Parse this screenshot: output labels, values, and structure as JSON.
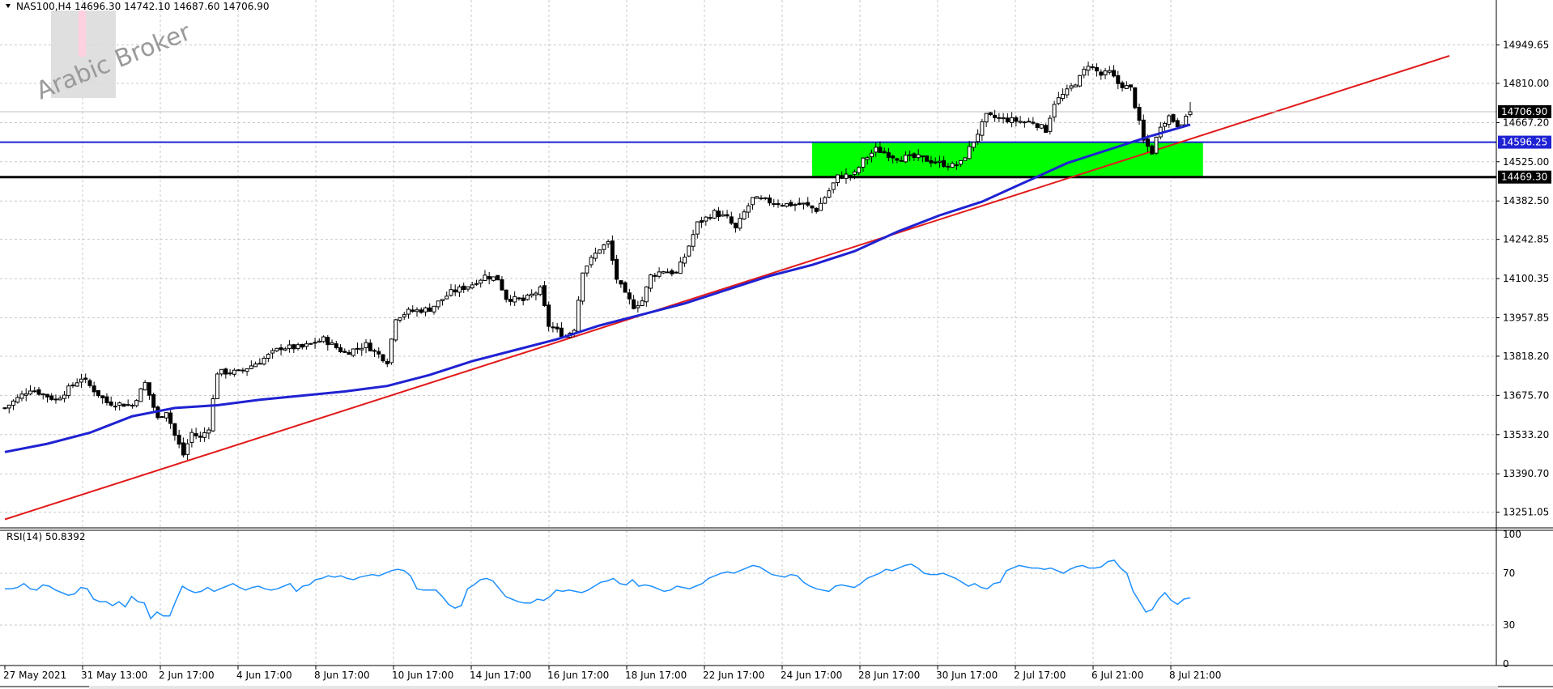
{
  "window": {
    "menu_icon": "triangle-down-icon",
    "title_line": "NAS100,H4   14696.30 14742.10 14687.60 14706.90",
    "watermark": "Arabic Broker"
  },
  "colors": {
    "bull_fill": "#ffffff",
    "bear_fill": "#000000",
    "ma": "#1f22d2",
    "trendline": "#e21a1a",
    "hline_upper": "#1f22d2",
    "hline_lower": "#000000",
    "zone": "#00ff00",
    "rsi": "#1e90ff",
    "grid": "#c8c8c8"
  },
  "chart_data": [
    {
      "type": "candlestick",
      "symbol": "NAS100",
      "timeframe": "H4",
      "ohlc_header": {
        "open": 14696.3,
        "high": 14742.1,
        "low": 14687.6,
        "close": 14706.9
      },
      "price_axis_ticks": [
        "14949.65",
        "14810.00",
        "14667.20",
        "14525.00",
        "14382.50",
        "14242.85",
        "14100.35",
        "13957.85",
        "13818.20",
        "13675.70",
        "13533.20",
        "13390.70",
        "13251.05"
      ],
      "ylim": [
        13200,
        15060
      ],
      "time_axis_ticks": [
        "27 May 2021",
        "31 May 13:00",
        "2 Jun 17:00",
        "4 Jun 17:00",
        "8 Jun 17:00",
        "10 Jun 17:00",
        "14 Jun 17:00",
        "16 Jun 17:00",
        "18 Jun 17:00",
        "22 Jun 17:00",
        "24 Jun 17:00",
        "28 Jun 17:00",
        "30 Jun 17:00",
        "2 Jul 17:00",
        "6 Jul 21:00",
        "8 Jul 21:00"
      ],
      "price_tags": [
        {
          "value": "14706.90",
          "style": "current-price"
        },
        {
          "value": "14596.25",
          "style": "blue-level"
        },
        {
          "value": "14469.30",
          "style": "black-level"
        }
      ],
      "close_path": [
        [
          0,
          13630
        ],
        [
          6,
          13700
        ],
        [
          12,
          13660
        ],
        [
          18,
          13740
        ],
        [
          24,
          13650
        ],
        [
          30,
          13640
        ],
        [
          33,
          13720
        ],
        [
          36,
          13590
        ],
        [
          38,
          13620
        ],
        [
          40,
          13530
        ],
        [
          42,
          13460
        ],
        [
          44,
          13540
        ],
        [
          46,
          13520
        ],
        [
          48,
          13560
        ],
        [
          50,
          13760
        ],
        [
          55,
          13760
        ],
        [
          60,
          13800
        ],
        [
          65,
          13850
        ],
        [
          70,
          13850
        ],
        [
          75,
          13880
        ],
        [
          80,
          13830
        ],
        [
          85,
          13860
        ],
        [
          90,
          13800
        ],
        [
          92,
          13960
        ],
        [
          95,
          13980
        ],
        [
          100,
          13990
        ],
        [
          105,
          14050
        ],
        [
          110,
          14080
        ],
        [
          113,
          14110
        ],
        [
          116,
          14100
        ],
        [
          118,
          14030
        ],
        [
          122,
          14020
        ],
        [
          126,
          14060
        ],
        [
          128,
          13930
        ],
        [
          130,
          13910
        ],
        [
          132,
          13890
        ],
        [
          134,
          13920
        ],
        [
          136,
          14130
        ],
        [
          140,
          14210
        ],
        [
          142,
          14230
        ],
        [
          144,
          14100
        ],
        [
          146,
          14040
        ],
        [
          148,
          14000
        ],
        [
          150,
          14020
        ],
        [
          152,
          14110
        ],
        [
          155,
          14130
        ],
        [
          158,
          14120
        ],
        [
          160,
          14180
        ],
        [
          163,
          14300
        ],
        [
          167,
          14340
        ],
        [
          170,
          14320
        ],
        [
          172,
          14280
        ],
        [
          174,
          14340
        ],
        [
          176,
          14390
        ],
        [
          180,
          14380
        ],
        [
          184,
          14370
        ],
        [
          188,
          14370
        ],
        [
          191,
          14350
        ],
        [
          194,
          14420
        ],
        [
          196,
          14470
        ],
        [
          200,
          14480
        ],
        [
          202,
          14530
        ],
        [
          205,
          14570
        ],
        [
          210,
          14540
        ],
        [
          215,
          14540
        ],
        [
          220,
          14520
        ],
        [
          223,
          14510
        ],
        [
          225,
          14520
        ],
        [
          228,
          14600
        ],
        [
          231,
          14690
        ],
        [
          235,
          14680
        ],
        [
          240,
          14670
        ],
        [
          242,
          14670
        ],
        [
          245,
          14640
        ],
        [
          247,
          14740
        ],
        [
          250,
          14780
        ],
        [
          253,
          14830
        ],
        [
          255,
          14880
        ],
        [
          258,
          14840
        ],
        [
          260,
          14850
        ],
        [
          262,
          14810
        ],
        [
          265,
          14790
        ],
        [
          266,
          14730
        ],
        [
          268,
          14600
        ],
        [
          270,
          14560
        ],
        [
          272,
          14660
        ],
        [
          274,
          14690
        ],
        [
          276,
          14660
        ],
        [
          278,
          14680
        ],
        [
          279,
          14706.9
        ]
      ],
      "moving_average_path": [
        [
          0,
          13470
        ],
        [
          10,
          13500
        ],
        [
          20,
          13540
        ],
        [
          30,
          13600
        ],
        [
          40,
          13630
        ],
        [
          50,
          13640
        ],
        [
          60,
          13660
        ],
        [
          70,
          13675
        ],
        [
          80,
          13690
        ],
        [
          90,
          13710
        ],
        [
          100,
          13750
        ],
        [
          110,
          13800
        ],
        [
          120,
          13840
        ],
        [
          130,
          13880
        ],
        [
          140,
          13930
        ],
        [
          150,
          13970
        ],
        [
          160,
          14010
        ],
        [
          170,
          14060
        ],
        [
          180,
          14110
        ],
        [
          190,
          14150
        ],
        [
          200,
          14200
        ],
        [
          210,
          14270
        ],
        [
          220,
          14330
        ],
        [
          230,
          14380
        ],
        [
          240,
          14450
        ],
        [
          250,
          14520
        ],
        [
          260,
          14570
        ],
        [
          270,
          14620
        ],
        [
          279,
          14660
        ]
      ],
      "trendline": {
        "from": [
          0,
          13225
        ],
        "to": [
          340,
          14910
        ]
      },
      "horizontal_levels": [
        14596.25,
        14469.3
      ],
      "zone": {
        "x_from": 190,
        "x_to": 282,
        "y_from": 14469.3,
        "y_to": 14596.25
      }
    },
    {
      "type": "line",
      "indicator_label": "RSI(14) 50.8392",
      "ylim": [
        0,
        100
      ],
      "y_ticks": [
        "100",
        "70",
        "30",
        "0"
      ],
      "values": [
        58,
        58,
        59,
        62,
        58,
        57,
        61,
        60,
        57,
        55,
        53,
        54,
        59,
        58,
        50,
        48,
        48,
        45,
        48,
        44,
        52,
        48,
        47,
        35,
        40,
        37,
        37,
        49,
        60,
        57,
        55,
        56,
        59,
        56,
        58,
        60,
        62,
        59,
        57,
        59,
        60,
        58,
        57,
        58,
        60,
        62,
        56,
        60,
        61,
        65,
        66,
        68,
        67,
        68,
        66,
        65,
        67,
        68,
        69,
        68,
        70,
        72,
        73,
        72,
        68,
        58,
        57,
        57,
        57,
        52,
        46,
        43,
        45,
        58,
        61,
        65,
        66,
        64,
        58,
        52,
        50,
        48,
        47,
        47,
        50,
        49,
        52,
        57,
        56,
        57,
        56,
        55,
        57,
        60,
        63,
        64,
        66,
        62,
        61,
        65,
        60,
        61,
        60,
        58,
        56,
        57,
        60,
        59,
        58,
        60,
        62,
        66,
        68,
        70,
        71,
        70,
        72,
        74,
        76,
        75,
        72,
        69,
        68,
        67,
        69,
        68,
        63,
        60,
        58,
        57,
        56,
        60,
        61,
        60,
        59,
        62,
        66,
        68,
        70,
        73,
        72,
        74,
        76,
        77,
        74,
        70,
        69,
        69,
        70,
        68,
        66,
        63,
        60,
        62,
        59,
        58,
        62,
        63,
        72,
        74,
        76,
        75,
        74,
        74,
        73,
        74,
        72,
        70,
        73,
        75,
        76,
        74,
        74,
        75,
        79,
        80,
        74,
        70,
        56,
        48,
        40,
        42,
        50,
        55,
        49,
        46,
        50,
        51
      ]
    }
  ]
}
